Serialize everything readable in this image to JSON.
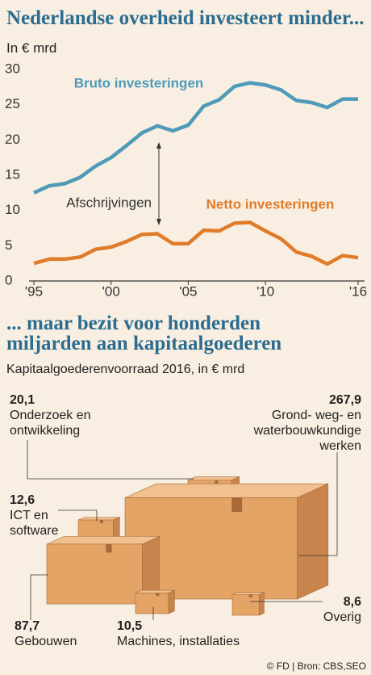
{
  "chart_data": [
    {
      "type": "line",
      "title": "Nederlandse overheid investeert minder...",
      "subtitle": "In € mrd",
      "x": [
        1995,
        1996,
        1997,
        1998,
        1999,
        2000,
        2001,
        2002,
        2003,
        2004,
        2005,
        2006,
        2007,
        2008,
        2009,
        2010,
        2011,
        2012,
        2013,
        2014,
        2015,
        2016
      ],
      "xlim": [
        1995,
        2016
      ],
      "xticks": [
        {
          "value": 1995,
          "label": "'95"
        },
        {
          "value": 2000,
          "label": "'00"
        },
        {
          "value": 2005,
          "label": "'05"
        },
        {
          "value": 2010,
          "label": "'10"
        },
        {
          "value": 2016,
          "label": "'16"
        }
      ],
      "ylim": [
        0,
        30
      ],
      "yticks": [
        0,
        5,
        10,
        15,
        20,
        25,
        30
      ],
      "grid": false,
      "series": [
        {
          "name": "Bruto investeringen",
          "color": "#4f9ab8",
          "values": [
            12.5,
            13.5,
            13.8,
            14.7,
            16.3,
            17.5,
            19.2,
            21,
            22,
            21.3,
            22.1,
            24.8,
            25.7,
            27.6,
            28.1,
            27.8,
            27.1,
            25.6,
            25.3,
            24.6,
            25.8,
            25.8
          ]
        },
        {
          "name": "Netto investeringen",
          "color": "#e07b2a",
          "values": [
            2.5,
            3.1,
            3.1,
            3.4,
            4.5,
            4.8,
            5.6,
            6.6,
            6.7,
            5.3,
            5.3,
            7.2,
            7.1,
            8.2,
            8.3,
            7.1,
            6.0,
            4.1,
            3.5,
            2.4,
            3.6,
            3.3
          ]
        }
      ],
      "annotation": "Afschrijvingen"
    },
    {
      "type": "boxes",
      "title": "... maar bezit voor honderden miljarden aan kapitaalgoederen",
      "subtitle": "Kapitaalgoederenvoorraad 2016, in € mrd",
      "categories": [
        "Onderzoek en ontwikkeling",
        "Grond- weg- en waterbouwkundige werken",
        "ICT en software",
        "Gebouwen",
        "Machines, installaties",
        "Overig"
      ],
      "values": [
        20.1,
        267.9,
        12.6,
        87.7,
        10.5,
        8.6
      ],
      "value_labels": [
        "20,1",
        "267,9",
        "12,6",
        "87,7",
        "10,5",
        "8,6"
      ],
      "color": "#e3a466"
    }
  ],
  "source": "© FD | Bron: CBS,SEO"
}
